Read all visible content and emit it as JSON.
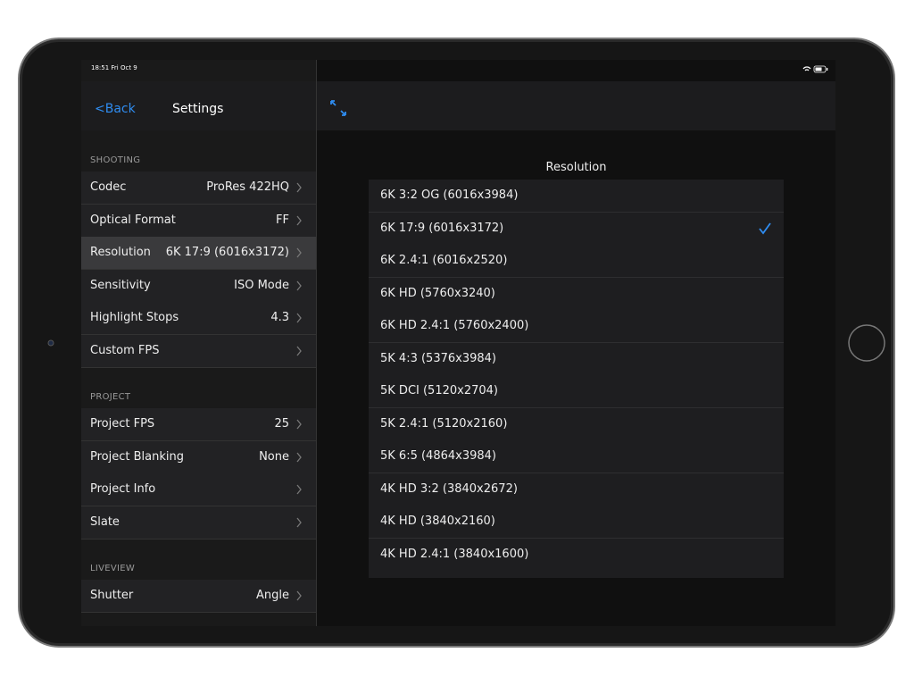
{
  "status_bar": {
    "time": "18:51  Fri Oct 9"
  },
  "nav": {
    "back": "<Back",
    "title": "Settings"
  },
  "sections": [
    {
      "title": "SHOOTING",
      "rows": [
        {
          "label": "Codec",
          "value": "ProRes 422HQ"
        },
        {
          "label": "Optical Format",
          "value": "FF"
        },
        {
          "label": "Resolution",
          "value": "6K 17:9 (6016x3172)",
          "selected": true
        },
        {
          "label": "Sensitivity",
          "value": "ISO Mode"
        },
        {
          "label": "Highlight Stops",
          "value": "4.3"
        },
        {
          "label": "Custom FPS"
        }
      ]
    },
    {
      "title": "PROJECT",
      "rows": [
        {
          "label": "Project FPS",
          "value": "25"
        },
        {
          "label": "Project Blanking",
          "value": "None"
        },
        {
          "label": "Project Info"
        },
        {
          "label": "Slate"
        }
      ]
    },
    {
      "title": "LIVEVIEW",
      "rows": [
        {
          "label": "Shutter",
          "value": "Angle"
        }
      ]
    }
  ],
  "detail": {
    "title": "Resolution",
    "checked": 1,
    "options": [
      "6K 3:2 OG (6016x3984)",
      "6K 17:9 (6016x3172)",
      "6K 2.4:1 (6016x2520)",
      "6K HD (5760x3240)",
      "6K HD 2.4:1 (5760x2400)",
      "5K 4:3 (5376x3984)",
      "5K DCI (5120x2704)",
      "5K 2.4:1 (5120x2160)",
      "5K 6:5 (4864x3984)",
      "4K HD 3:2 (3840x2672)",
      "4K HD (3840x2160)",
      "4K HD 2.4:1 (3840x1600)"
    ]
  }
}
